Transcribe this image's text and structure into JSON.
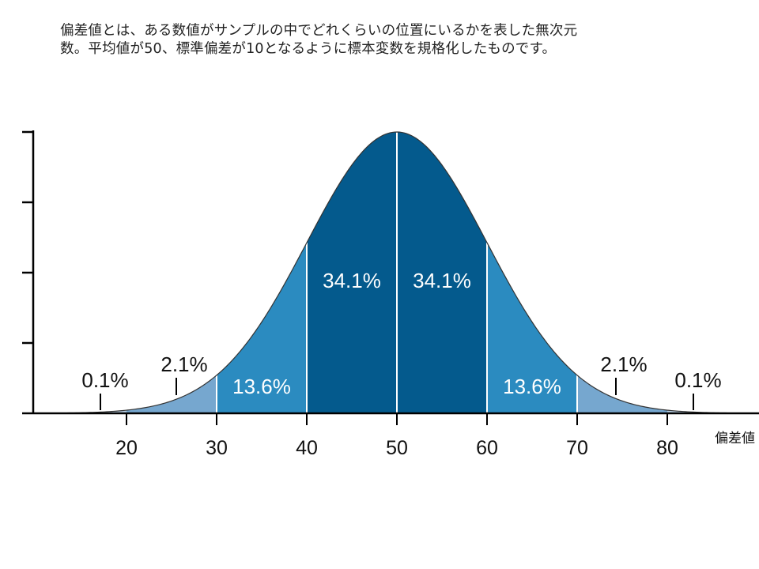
{
  "intro": {
    "line1": "偏差値とは、ある数値がサンプルの中でどれくらいの位置にいるかを表した無次元",
    "line2": "数。平均値が50、標準偏差が10となるように標本変数を規格化したものです。"
  },
  "chart_data": {
    "type": "area",
    "distribution": "normal",
    "mean": 50,
    "sd": 10,
    "xlim": [
      10,
      88
    ],
    "xlabel": "偏差値",
    "x_ticks": [
      20,
      30,
      40,
      50,
      60,
      70,
      80
    ],
    "y_ticks_count": 5,
    "y_tick_labels_shown": false,
    "bands": [
      {
        "from": 20,
        "to": 30,
        "percent": "2.1%",
        "color": "#76a7cf"
      },
      {
        "from": 30,
        "to": 40,
        "percent": "13.6%",
        "color": "#2b8bc0"
      },
      {
        "from": 40,
        "to": 50,
        "percent": "34.1%",
        "color": "#045a8d"
      },
      {
        "from": 50,
        "to": 60,
        "percent": "34.1%",
        "color": "#045a8d"
      },
      {
        "from": 60,
        "to": 70,
        "percent": "13.6%",
        "color": "#2b8bc0"
      },
      {
        "from": 70,
        "to": 80,
        "percent": "2.1%",
        "color": "#76a7cf"
      }
    ],
    "tail_labels": [
      {
        "at": 17,
        "percent": "0.1%"
      },
      {
        "at": 83,
        "percent": "0.1%"
      }
    ],
    "tail_color": "#b9cfe3",
    "curve_color": "#333333",
    "divider_color": "#ffffff"
  }
}
